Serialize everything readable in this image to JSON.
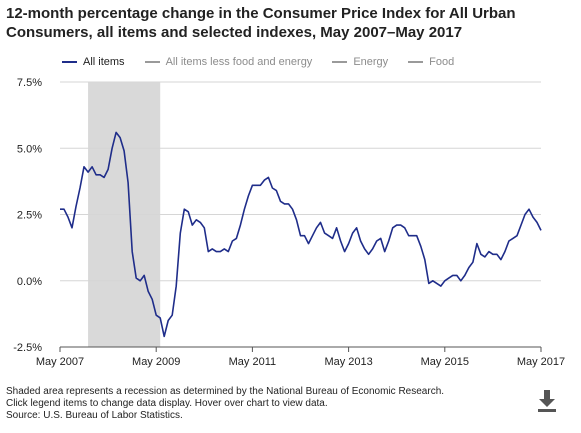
{
  "title_line1": "12-month percentage change in the Consumer Price Index for All Urban",
  "title_line2": "Consumers, all items and selected indexes, May 2007–May 2017",
  "legend": [
    {
      "label": "All items",
      "color": "#1f2d8a",
      "active": true
    },
    {
      "label": "All items less food and energy",
      "color": "#9a9a9a",
      "active": false
    },
    {
      "label": "Energy",
      "color": "#9a9a9a",
      "active": false
    },
    {
      "label": "Food",
      "color": "#9a9a9a",
      "active": false
    }
  ],
  "footer": {
    "line1": "Shaded area represents a recession as determined by the National Bureau of Economic Research.",
    "line2": "Click legend items to change data display. Hover over chart to view data.",
    "line3": "Source: U.S. Bureau of Labor Statistics."
  },
  "download_icon": "download-icon",
  "chart_data": {
    "type": "line",
    "title": "12-month percentage change in the Consumer Price Index for All Urban Consumers, all items and selected indexes, May 2007–May 2017",
    "xlabel": "",
    "ylabel": "",
    "ylim": [
      -2.5,
      7.5
    ],
    "y_ticks": [
      {
        "value": 7.5,
        "label": "7.5%"
      },
      {
        "value": 5.0,
        "label": "5.0%"
      },
      {
        "value": 2.5,
        "label": "2.5%"
      },
      {
        "value": 0.0,
        "label": "0.0%"
      },
      {
        "value": -2.5,
        "label": "-2.5%"
      }
    ],
    "x_ticks": [
      "May 2007",
      "May 2009",
      "May 2011",
      "May 2013",
      "May 2015",
      "May 2017"
    ],
    "grid": true,
    "line_color": "#1f2d8a",
    "recession": {
      "start": "Dec 2007",
      "end": "Jun 2009",
      "color": "#d9d9d9"
    },
    "x": [
      "May 2007",
      "Jun 2007",
      "Jul 2007",
      "Aug 2007",
      "Sep 2007",
      "Oct 2007",
      "Nov 2007",
      "Dec 2007",
      "Jan 2008",
      "Feb 2008",
      "Mar 2008",
      "Apr 2008",
      "May 2008",
      "Jun 2008",
      "Jul 2008",
      "Aug 2008",
      "Sep 2008",
      "Oct 2008",
      "Nov 2008",
      "Dec 2008",
      "Jan 2009",
      "Feb 2009",
      "Mar 2009",
      "Apr 2009",
      "May 2009",
      "Jun 2009",
      "Jul 2009",
      "Aug 2009",
      "Sep 2009",
      "Oct 2009",
      "Nov 2009",
      "Dec 2009",
      "Jan 2010",
      "Feb 2010",
      "Mar 2010",
      "Apr 2010",
      "May 2010",
      "Jun 2010",
      "Jul 2010",
      "Aug 2010",
      "Sep 2010",
      "Oct 2010",
      "Nov 2010",
      "Dec 2010",
      "Jan 2011",
      "Feb 2011",
      "Mar 2011",
      "Apr 2011",
      "May 2011",
      "Jun 2011",
      "Jul 2011",
      "Aug 2011",
      "Sep 2011",
      "Oct 2011",
      "Nov 2011",
      "Dec 2011",
      "Jan 2012",
      "Feb 2012",
      "Mar 2012",
      "Apr 2012",
      "May 2012",
      "Jun 2012",
      "Jul 2012",
      "Aug 2012",
      "Sep 2012",
      "Oct 2012",
      "Nov 2012",
      "Dec 2012",
      "Jan 2013",
      "Feb 2013",
      "Mar 2013",
      "Apr 2013",
      "May 2013",
      "Jun 2013",
      "Jul 2013",
      "Aug 2013",
      "Sep 2013",
      "Oct 2013",
      "Nov 2013",
      "Dec 2013",
      "Jan 2014",
      "Feb 2014",
      "Mar 2014",
      "Apr 2014",
      "May 2014",
      "Jun 2014",
      "Jul 2014",
      "Aug 2014",
      "Sep 2014",
      "Oct 2014",
      "Nov 2014",
      "Dec 2014",
      "Jan 2015",
      "Feb 2015",
      "Mar 2015",
      "Apr 2015",
      "May 2015",
      "Jun 2015",
      "Jul 2015",
      "Aug 2015",
      "Sep 2015",
      "Oct 2015",
      "Nov 2015",
      "Dec 2015",
      "Jan 2016",
      "Feb 2016",
      "Mar 2016",
      "Apr 2016",
      "May 2016",
      "Jun 2016",
      "Jul 2016",
      "Aug 2016",
      "Sep 2016",
      "Oct 2016",
      "Nov 2016",
      "Dec 2016",
      "Jan 2017",
      "Feb 2017",
      "Mar 2017",
      "Apr 2017",
      "May 2017"
    ],
    "series": [
      {
        "name": "All items",
        "values": [
          2.7,
          2.7,
          2.4,
          2.0,
          2.8,
          3.5,
          4.3,
          4.1,
          4.3,
          4.0,
          4.0,
          3.9,
          4.2,
          5.0,
          5.6,
          5.4,
          4.9,
          3.7,
          1.1,
          0.1,
          0.0,
          0.2,
          -0.4,
          -0.7,
          -1.3,
          -1.4,
          -2.1,
          -1.5,
          -1.3,
          -0.2,
          1.8,
          2.7,
          2.6,
          2.1,
          2.3,
          2.2,
          2.0,
          1.1,
          1.2,
          1.1,
          1.1,
          1.2,
          1.1,
          1.5,
          1.6,
          2.1,
          2.7,
          3.2,
          3.6,
          3.6,
          3.6,
          3.8,
          3.9,
          3.5,
          3.4,
          3.0,
          2.9,
          2.9,
          2.7,
          2.3,
          1.7,
          1.7,
          1.4,
          1.7,
          2.0,
          2.2,
          1.8,
          1.7,
          1.6,
          2.0,
          1.5,
          1.1,
          1.4,
          1.8,
          2.0,
          1.5,
          1.2,
          1.0,
          1.2,
          1.5,
          1.6,
          1.1,
          1.5,
          2.0,
          2.1,
          2.1,
          2.0,
          1.7,
          1.7,
          1.7,
          1.3,
          0.8,
          -0.1,
          0.0,
          -0.1,
          -0.2,
          0.0,
          0.1,
          0.2,
          0.2,
          0.0,
          0.2,
          0.5,
          0.7,
          1.4,
          1.0,
          0.9,
          1.1,
          1.0,
          1.0,
          0.8,
          1.1,
          1.5,
          1.6,
          1.7,
          2.1,
          2.5,
          2.7,
          2.4,
          2.2,
          1.9
        ]
      }
    ]
  }
}
